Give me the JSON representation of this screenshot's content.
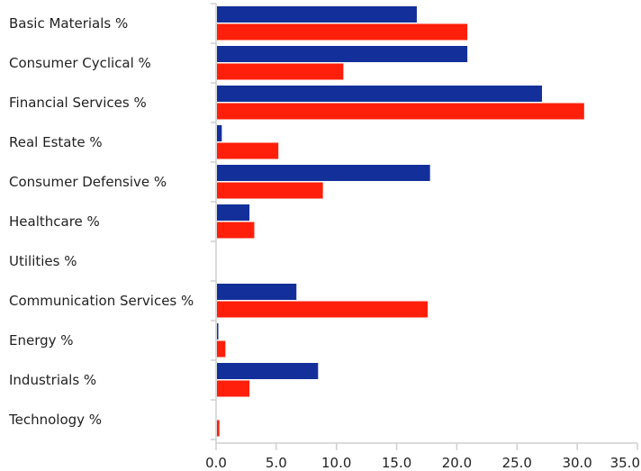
{
  "chart_data": {
    "type": "bar",
    "orientation": "horizontal",
    "categories": [
      "Basic Materials %",
      "Consumer Cyclical %",
      "Financial Services %",
      "Real Estate %",
      "Consumer Defensive %",
      "Healthcare %",
      "Utilities %",
      "Communication Services %",
      "Energy %",
      "Industrials %",
      "Technology %"
    ],
    "series": [
      {
        "values": [
          16.6,
          20.8,
          27.0,
          0.4,
          17.7,
          2.7,
          0.0,
          6.6,
          0.1,
          8.4,
          0.0
        ],
        "color": "#13309a"
      },
      {
        "values": [
          20.8,
          10.5,
          30.5,
          5.1,
          8.8,
          3.1,
          0.0,
          17.5,
          0.7,
          2.7,
          0.2
        ],
        "color": "#ff1f0a"
      }
    ],
    "xticks": [
      "0.0",
      "5.0",
      "10.0",
      "15.0",
      "20.0",
      "25.0",
      "30.0",
      "35.0"
    ],
    "xlim": [
      0,
      35
    ],
    "title": "",
    "xlabel": "",
    "ylabel": "",
    "grid": false,
    "legend": "none"
  }
}
